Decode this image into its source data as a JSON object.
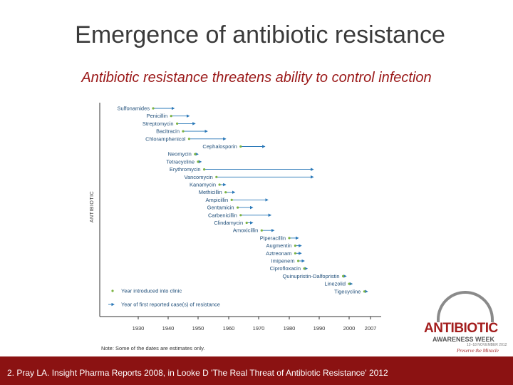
{
  "slide": {
    "title": "Emergence of antibiotic resistance",
    "subtitle": "Antibiotic resistance threatens ability to control infection",
    "footer": "2. Pray LA. Insight Pharma Reports 2008, in Looke D 'The Real Threat of Antibiotic Resistance' 2012"
  },
  "logo": {
    "word": "ANTIBIOTIC",
    "sub": "AWARENESS WEEK",
    "date": "12–18 NOVEMBER 2012",
    "tagline": "Preserve the Miracle"
  },
  "chart_data": {
    "type": "timeline",
    "title": "",
    "ylabel": "ANTIBIOTIC",
    "xlabel": "",
    "x_ticks": [
      1930,
      1940,
      1950,
      1960,
      1970,
      1980,
      1990,
      2000,
      2007
    ],
    "legend": {
      "position": "bottom-left",
      "items": [
        "Year introduced into clinic",
        "Year of first reported case(s) of resistance"
      ]
    },
    "note": "Note: Some of the dates are estimates only.",
    "colors": {
      "introduced": "#7cb342",
      "resistance": "#2a78b8",
      "text": "#1f4e79"
    },
    "series": [
      {
        "name": "Sulfonamides",
        "introduced": 1935,
        "resistance": 1942
      },
      {
        "name": "Penicillin",
        "introduced": 1941,
        "resistance": 1947
      },
      {
        "name": "Streptomycin",
        "introduced": 1943,
        "resistance": 1949
      },
      {
        "name": "Bacitracin",
        "introduced": 1945,
        "resistance": 1953
      },
      {
        "name": "Chloramphenicol",
        "introduced": 1947,
        "resistance": 1959
      },
      {
        "name": "Cephalosporin",
        "introduced": 1964,
        "resistance": 1972
      },
      {
        "name": "Neomycin",
        "introduced": 1949,
        "resistance": 1950
      },
      {
        "name": "Tetracycline",
        "introduced": 1950,
        "resistance": 1951
      },
      {
        "name": "Erythromycin",
        "introduced": 1952,
        "resistance": 1988
      },
      {
        "name": "Vancomycin",
        "introduced": 1956,
        "resistance": 1988
      },
      {
        "name": "Kanamycin",
        "introduced": 1957,
        "resistance": 1959
      },
      {
        "name": "Methicillin",
        "introduced": 1959,
        "resistance": 1962
      },
      {
        "name": "Ampicillin",
        "introduced": 1961,
        "resistance": 1973
      },
      {
        "name": "Gentamicin",
        "introduced": 1963,
        "resistance": 1968
      },
      {
        "name": "Carbenicillin",
        "introduced": 1964,
        "resistance": 1974
      },
      {
        "name": "Clindamycin",
        "introduced": 1966,
        "resistance": 1968
      },
      {
        "name": "Amoxicillin",
        "introduced": 1971,
        "resistance": 1975
      },
      {
        "name": "Piperacillin",
        "introduced": 1980,
        "resistance": 1983
      },
      {
        "name": "Augmentin",
        "introduced": 1982,
        "resistance": 1984
      },
      {
        "name": "Aztreonam",
        "introduced": 1982,
        "resistance": 1984
      },
      {
        "name": "Imipenem",
        "introduced": 1983,
        "resistance": 1985
      },
      {
        "name": "Ciprofloxacin",
        "introduced": 1985,
        "resistance": 1986
      },
      {
        "name": "Quinupristin-Dalfopristin",
        "introduced": 1998,
        "resistance": 1999
      },
      {
        "name": "Linezolid",
        "introduced": 2000,
        "resistance": 2001
      },
      {
        "name": "Tigecycline",
        "introduced": 2005,
        "resistance": 2006
      }
    ]
  }
}
